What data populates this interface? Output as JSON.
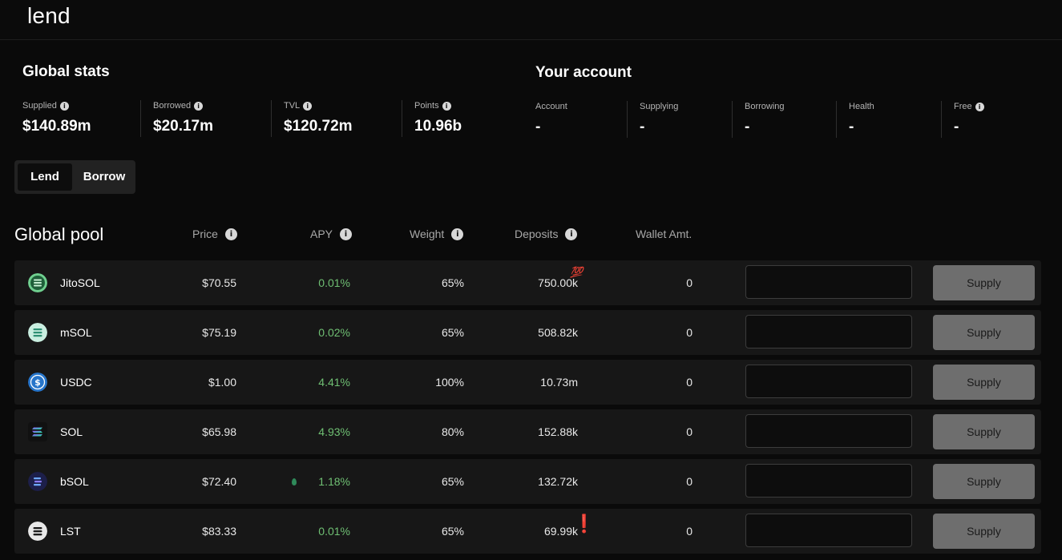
{
  "app": {
    "logo": "lend"
  },
  "global_stats": {
    "title": "Global stats",
    "items": [
      {
        "label": "Supplied",
        "value": "$140.89m",
        "info": true
      },
      {
        "label": "Borrowed",
        "value": "$20.17m",
        "info": true
      },
      {
        "label": "TVL",
        "value": "$120.72m",
        "info": true
      },
      {
        "label": "Points",
        "value": "10.96b",
        "info": true
      }
    ]
  },
  "account": {
    "title": "Your account",
    "items": [
      {
        "label": "Account",
        "value": "-"
      },
      {
        "label": "Supplying",
        "value": "-"
      },
      {
        "label": "Borrowing",
        "value": "-"
      },
      {
        "label": "Health",
        "value": "-"
      },
      {
        "label": "Free",
        "value": "-",
        "info": true
      }
    ]
  },
  "mode_toggle": {
    "options": [
      "Lend",
      "Borrow"
    ],
    "selected": "Lend"
  },
  "pool": {
    "title": "Global pool",
    "columns": [
      "Price",
      "APY",
      "Weight",
      "Deposits",
      "Wallet Amt."
    ],
    "supply_label": "Supply",
    "rows": [
      {
        "token": "JitoSOL",
        "icon": "jitosol-icon",
        "price": "$70.55",
        "apy": "0.01%",
        "weight": "65%",
        "deposits": "750.00k",
        "wallet": "0",
        "badge": "💯"
      },
      {
        "token": "mSOL",
        "icon": "msol-icon",
        "price": "$75.19",
        "apy": "0.02%",
        "weight": "65%",
        "deposits": "508.82k",
        "wallet": "0"
      },
      {
        "token": "USDC",
        "icon": "usdc-icon",
        "price": "$1.00",
        "apy": "4.41%",
        "weight": "100%",
        "deposits": "10.73m",
        "wallet": "0"
      },
      {
        "token": "SOL",
        "icon": "sol-icon",
        "price": "$65.98",
        "apy": "4.93%",
        "weight": "80%",
        "deposits": "152.88k",
        "wallet": "0"
      },
      {
        "token": "bSOL",
        "icon": "bsol-icon",
        "price": "$72.40",
        "apy": "1.18%",
        "weight": "65%",
        "deposits": "132.72k",
        "wallet": "0",
        "apy_icon": "drop-icon"
      },
      {
        "token": "LST",
        "icon": "lst-icon",
        "price": "$83.33",
        "apy": "0.01%",
        "weight": "65%",
        "deposits": "69.99k",
        "wallet": "0",
        "badge": "❗"
      }
    ]
  },
  "colors": {
    "background": "#0a0a0a",
    "row_background": "#171717",
    "apy_green": "#6fbf73",
    "supply_button": "#6e6e6e"
  }
}
